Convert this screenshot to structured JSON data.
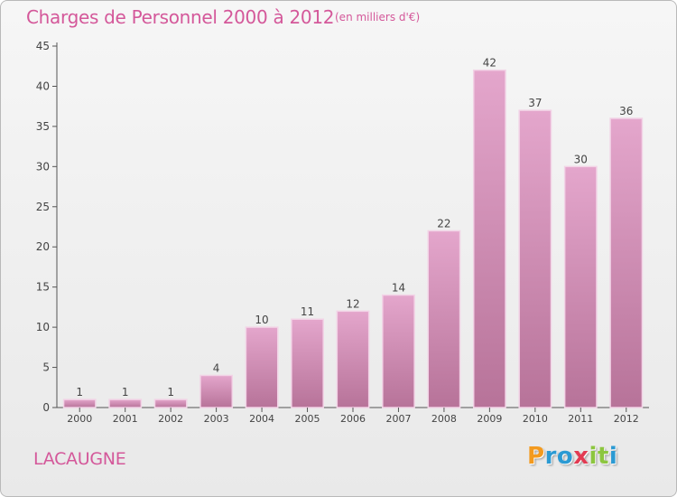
{
  "title": "Charges de Personnel 2000 à 2012",
  "subtitle": "(en milliers d'€)",
  "place": "LACAUGNE",
  "logo": {
    "letters": [
      {
        "ch": "P",
        "color": "#f39a1f"
      },
      {
        "ch": "r",
        "color": "#2b9ad3"
      },
      {
        "ch": "o",
        "color": "#2b9ad3"
      },
      {
        "ch": "x",
        "color": "#e23b52"
      },
      {
        "ch": "i",
        "color": "#8cc63f"
      },
      {
        "ch": "t",
        "color": "#8cc63f"
      },
      {
        "ch": "i",
        "color": "#2b9ad3"
      }
    ]
  },
  "colors": {
    "accent": "#d4589a",
    "bar_top": "#e4a6cc",
    "bar_bottom": "#b77399",
    "bar_edge": "#f2d3e6"
  },
  "chart_data": {
    "type": "bar",
    "title": "Charges de Personnel 2000 à 2012",
    "subtitle": "(en milliers d'€)",
    "categories": [
      "2000",
      "2001",
      "2002",
      "2003",
      "2004",
      "2005",
      "2006",
      "2007",
      "2008",
      "2009",
      "2010",
      "2011",
      "2012"
    ],
    "values": [
      1,
      1,
      1,
      4,
      10,
      11,
      12,
      14,
      22,
      42,
      37,
      30,
      36
    ],
    "data_labels": [
      "1",
      "1",
      "1",
      "4",
      "10",
      "11",
      "12",
      "14",
      "22",
      "42",
      "37",
      "30",
      "36"
    ],
    "ylim": [
      0,
      45
    ],
    "yticks": [
      0,
      5,
      10,
      15,
      20,
      25,
      30,
      35,
      40,
      45
    ],
    "grid": false,
    "legend": "none"
  }
}
